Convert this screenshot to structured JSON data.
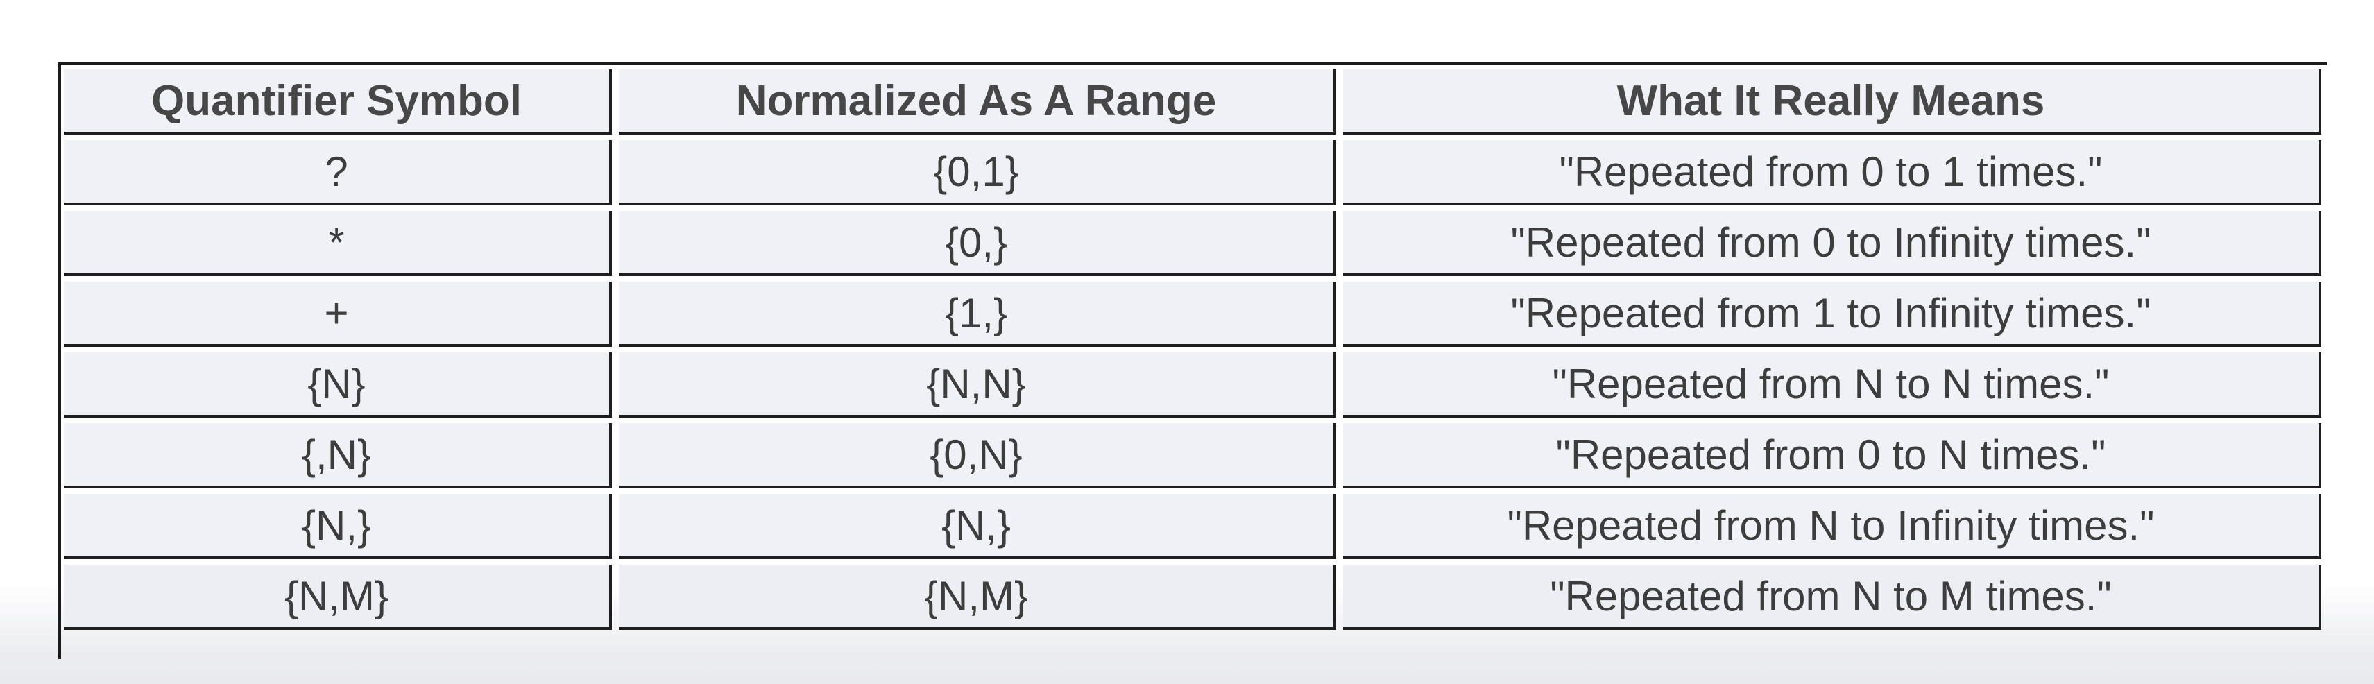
{
  "table": {
    "headers": [
      "Quantifier Symbol",
      "Normalized As A Range",
      "What It Really Means"
    ],
    "rows": [
      [
        "?",
        "{0,1}",
        "\"Repeated from 0 to 1 times.\""
      ],
      [
        "*",
        "{0,}",
        "\"Repeated from 0 to Infinity times.\""
      ],
      [
        "+",
        "{1,}",
        "\"Repeated from 1 to Infinity times.\""
      ],
      [
        "{N}",
        "{N,N}",
        "\"Repeated from N to N times.\""
      ],
      [
        "{,N}",
        "{0,N}",
        "\"Repeated from 0 to N times.\""
      ],
      [
        "{N,}",
        "{N,}",
        "\"Repeated from N to Infinity times.\""
      ],
      [
        "{N,M}",
        "{N,M}",
        "\"Repeated from N to M times.\""
      ]
    ]
  }
}
